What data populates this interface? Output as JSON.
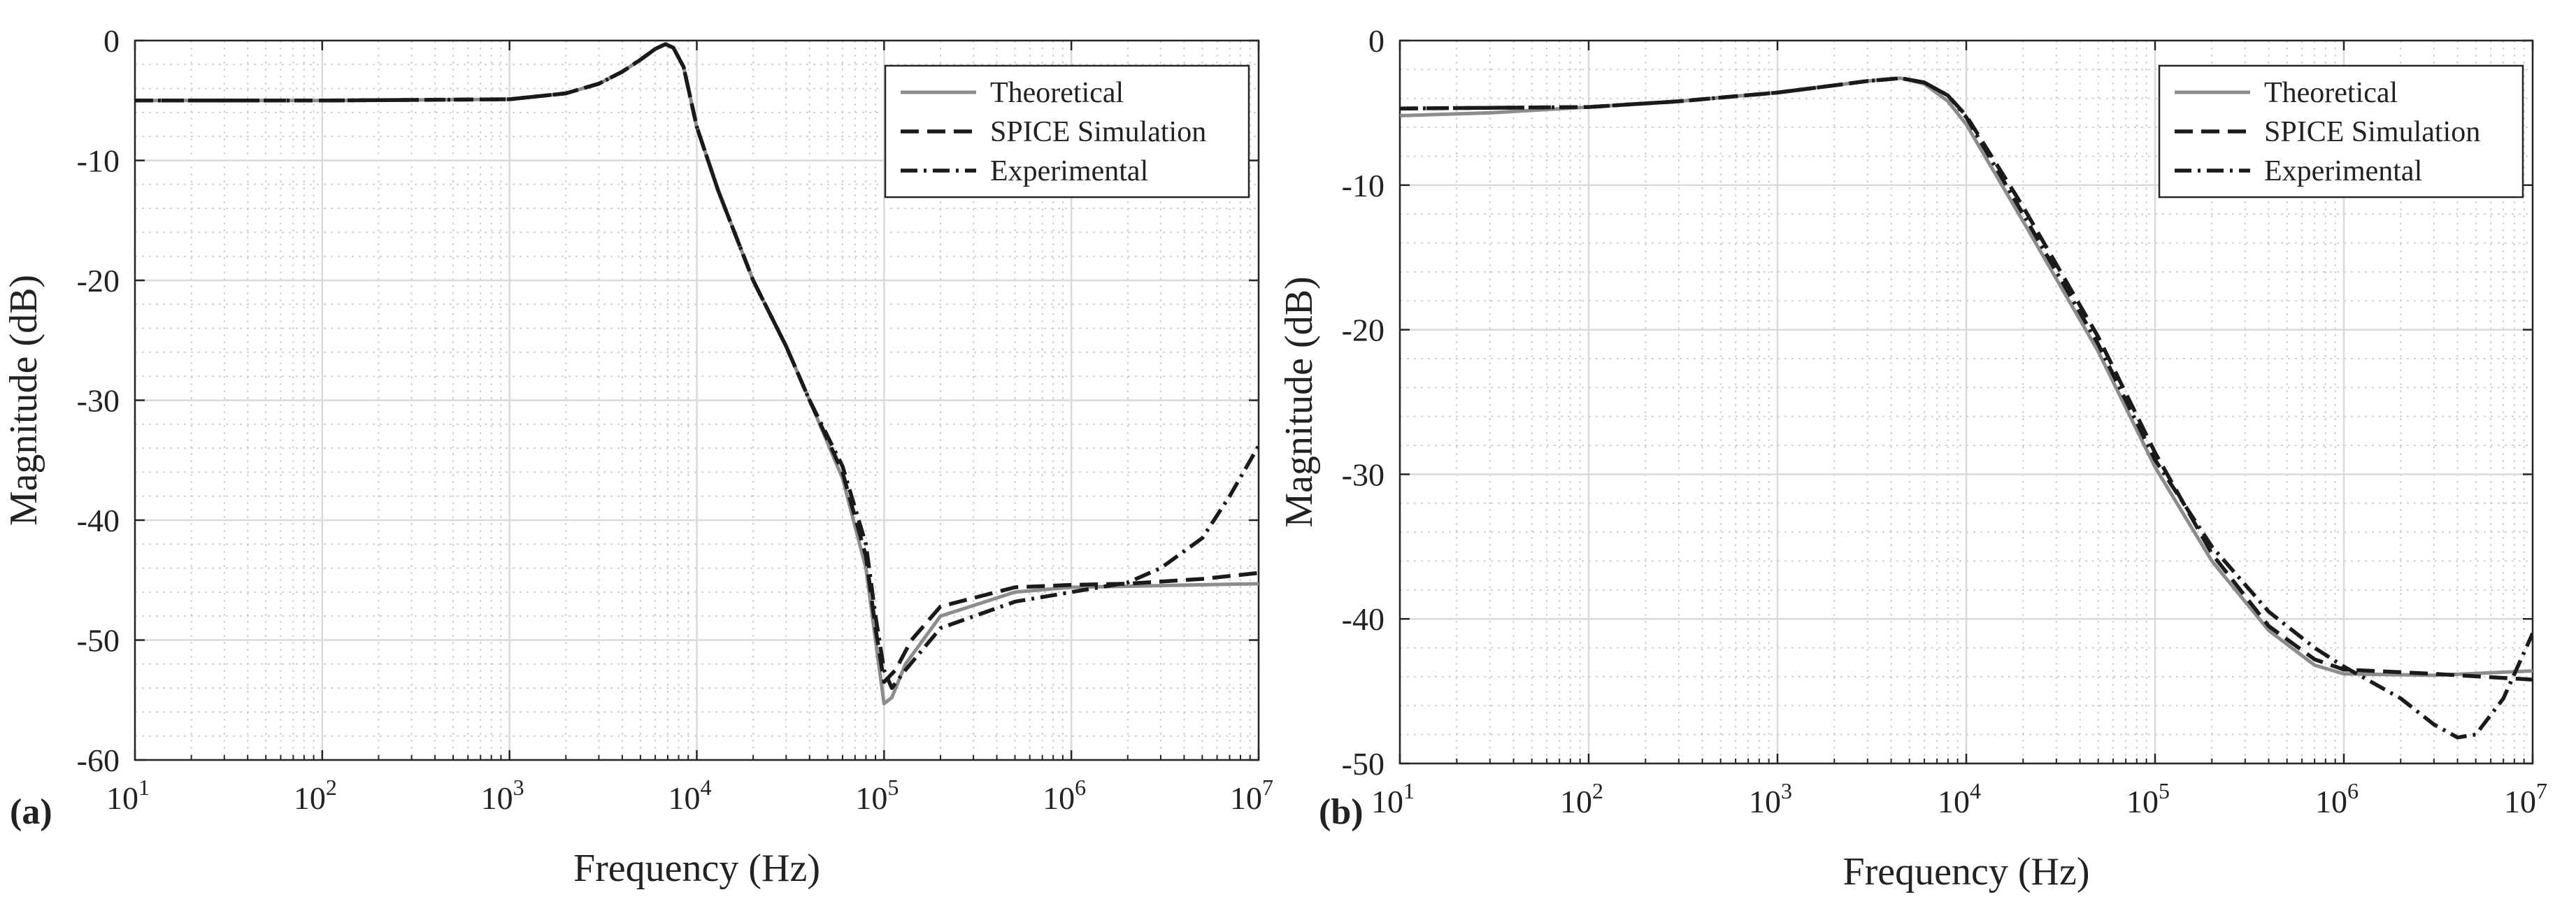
{
  "chart_data": [
    {
      "type": "line",
      "panel_label": "(a)",
      "xscale": "log",
      "xlim": [
        10,
        10000000
      ],
      "ylim": [
        -60,
        0
      ],
      "xlabel": "Frequency (Hz)",
      "ylabel": "Magnitude (dB)",
      "xticks": [
        10,
        100,
        1000,
        10000,
        100000,
        1000000,
        10000000
      ],
      "xtick_labels": [
        [
          "10",
          "1"
        ],
        [
          "10",
          "2"
        ],
        [
          "10",
          "3"
        ],
        [
          "10",
          "4"
        ],
        [
          "10",
          "5"
        ],
        [
          "10",
          "6"
        ],
        [
          "10",
          "7"
        ]
      ],
      "yticks": [
        0,
        -10,
        -20,
        -30,
        -40,
        -50,
        -60
      ],
      "ytick_labels": [
        "0",
        "-10",
        "-20",
        "-30",
        "-40",
        "-50",
        "-60"
      ],
      "grid": true,
      "legend_position": "top-right",
      "series": [
        {
          "name": "Theoretical",
          "style": "solid",
          "color": "#8c8c8c",
          "points": [
            [
              10,
              -5.0
            ],
            [
              100,
              -5.0
            ],
            [
              1000,
              -4.9
            ],
            [
              2000,
              -4.4
            ],
            [
              3000,
              -3.6
            ],
            [
              4000,
              -2.6
            ],
            [
              5000,
              -1.6
            ],
            [
              6000,
              -0.7
            ],
            [
              6800,
              -0.3
            ],
            [
              7500,
              -0.6
            ],
            [
              8500,
              -2.2
            ],
            [
              10000,
              -7.2
            ],
            [
              13000,
              -12.5
            ],
            [
              20000,
              -20.0
            ],
            [
              30000,
              -25.5
            ],
            [
              40000,
              -30.0
            ],
            [
              60000,
              -36.5
            ],
            [
              80000,
              -44.0
            ],
            [
              90000,
              -50.0
            ],
            [
              100000,
              -55.3
            ],
            [
              110000,
              -54.8
            ],
            [
              130000,
              -52.0
            ],
            [
              200000,
              -48.0
            ],
            [
              500000,
              -46.0
            ],
            [
              1000000,
              -45.6
            ],
            [
              10000000,
              -45.3
            ]
          ]
        },
        {
          "name": "SPICE Simulation",
          "style": "dashed",
          "color": "#1a1a1a",
          "points": [
            [
              10,
              -5.0
            ],
            [
              100,
              -5.0
            ],
            [
              1000,
              -4.9
            ],
            [
              2000,
              -4.4
            ],
            [
              3000,
              -3.6
            ],
            [
              4000,
              -2.6
            ],
            [
              5000,
              -1.6
            ],
            [
              6000,
              -0.7
            ],
            [
              6800,
              -0.3
            ],
            [
              7500,
              -0.6
            ],
            [
              8500,
              -2.2
            ],
            [
              10000,
              -7.2
            ],
            [
              13000,
              -12.5
            ],
            [
              20000,
              -20.0
            ],
            [
              30000,
              -25.5
            ],
            [
              40000,
              -30.0
            ],
            [
              60000,
              -36.0
            ],
            [
              80000,
              -43.0
            ],
            [
              90000,
              -49.0
            ],
            [
              100000,
              -53.5
            ],
            [
              115000,
              -52.5
            ],
            [
              140000,
              -50.0
            ],
            [
              200000,
              -47.2
            ],
            [
              500000,
              -45.6
            ],
            [
              1000000,
              -45.4
            ],
            [
              2000000,
              -45.3
            ],
            [
              5000000,
              -44.9
            ],
            [
              10000000,
              -44.4
            ]
          ]
        },
        {
          "name": "Experimental",
          "style": "dashdot",
          "color": "#1a1a1a",
          "points": [
            [
              10,
              -5.0
            ],
            [
              100,
              -5.0
            ],
            [
              1000,
              -4.9
            ],
            [
              2000,
              -4.4
            ],
            [
              3000,
              -3.6
            ],
            [
              4000,
              -2.6
            ],
            [
              5000,
              -1.6
            ],
            [
              6000,
              -0.7
            ],
            [
              6800,
              -0.3
            ],
            [
              7500,
              -0.6
            ],
            [
              8500,
              -2.2
            ],
            [
              10000,
              -7.2
            ],
            [
              13000,
              -12.5
            ],
            [
              20000,
              -20.0
            ],
            [
              30000,
              -25.5
            ],
            [
              40000,
              -30.0
            ],
            [
              60000,
              -35.5
            ],
            [
              80000,
              -42.0
            ],
            [
              90000,
              -48.0
            ],
            [
              100000,
              -52.5
            ],
            [
              110000,
              -54.0
            ],
            [
              130000,
              -52.5
            ],
            [
              200000,
              -49.0
            ],
            [
              500000,
              -46.8
            ],
            [
              1000000,
              -46.0
            ],
            [
              2000000,
              -45.2
            ],
            [
              3000000,
              -44.0
            ],
            [
              5000000,
              -41.5
            ],
            [
              7000000,
              -38.0
            ],
            [
              10000000,
              -33.8
            ]
          ]
        }
      ]
    },
    {
      "type": "line",
      "panel_label": "(b)",
      "xscale": "log",
      "xlim": [
        10,
        10000000
      ],
      "ylim": [
        -50,
        0
      ],
      "xlabel": "Frequency (Hz)",
      "ylabel": "Magnitude (dB)",
      "xticks": [
        10,
        100,
        1000,
        10000,
        100000,
        1000000,
        10000000
      ],
      "xtick_labels": [
        [
          "10",
          "1"
        ],
        [
          "10",
          "2"
        ],
        [
          "10",
          "3"
        ],
        [
          "10",
          "4"
        ],
        [
          "10",
          "5"
        ],
        [
          "10",
          "6"
        ],
        [
          "10",
          "7"
        ]
      ],
      "yticks": [
        0,
        -10,
        -20,
        -30,
        -40,
        -50
      ],
      "ytick_labels": [
        "0",
        "-10",
        "-20",
        "-30",
        "-40",
        "-50"
      ],
      "grid": true,
      "legend_position": "top-right",
      "series": [
        {
          "name": "Theoretical",
          "style": "solid",
          "color": "#8c8c8c",
          "points": [
            [
              10,
              -5.2
            ],
            [
              30,
              -5.0
            ],
            [
              100,
              -4.6
            ],
            [
              300,
              -4.2
            ],
            [
              1000,
              -3.6
            ],
            [
              2000,
              -3.1
            ],
            [
              3000,
              -2.8
            ],
            [
              4500,
              -2.6
            ],
            [
              6000,
              -3.0
            ],
            [
              8000,
              -4.2
            ],
            [
              10000,
              -5.8
            ],
            [
              20000,
              -12.5
            ],
            [
              50000,
              -21.5
            ],
            [
              100000,
              -29.5
            ],
            [
              200000,
              -36.0
            ],
            [
              400000,
              -40.8
            ],
            [
              700000,
              -43.2
            ],
            [
              1000000,
              -43.8
            ],
            [
              3000000,
              -43.9
            ],
            [
              10000000,
              -43.6
            ]
          ]
        },
        {
          "name": "SPICE Simulation",
          "style": "dashed",
          "color": "#1a1a1a",
          "points": [
            [
              10,
              -4.7
            ],
            [
              100,
              -4.6
            ],
            [
              300,
              -4.2
            ],
            [
              1000,
              -3.6
            ],
            [
              2000,
              -3.1
            ],
            [
              3000,
              -2.8
            ],
            [
              4500,
              -2.6
            ],
            [
              6000,
              -2.9
            ],
            [
              8000,
              -3.8
            ],
            [
              10000,
              -5.2
            ],
            [
              20000,
              -11.5
            ],
            [
              50000,
              -20.5
            ],
            [
              100000,
              -28.5
            ],
            [
              200000,
              -35.5
            ],
            [
              400000,
              -40.5
            ],
            [
              700000,
              -42.8
            ],
            [
              1000000,
              -43.5
            ],
            [
              3000000,
              -43.8
            ],
            [
              10000000,
              -44.2
            ]
          ]
        },
        {
          "name": "Experimental",
          "style": "dashdot",
          "color": "#1a1a1a",
          "points": [
            [
              10,
              -4.7
            ],
            [
              100,
              -4.6
            ],
            [
              300,
              -4.2
            ],
            [
              1000,
              -3.6
            ],
            [
              2000,
              -3.1
            ],
            [
              3000,
              -2.8
            ],
            [
              4500,
              -2.6
            ],
            [
              6000,
              -2.9
            ],
            [
              8000,
              -3.8
            ],
            [
              10000,
              -5.3
            ],
            [
              20000,
              -12.0
            ],
            [
              50000,
              -21.0
            ],
            [
              100000,
              -29.0
            ],
            [
              200000,
              -35.0
            ],
            [
              400000,
              -39.5
            ],
            [
              700000,
              -42.0
            ],
            [
              1000000,
              -43.3
            ],
            [
              2000000,
              -45.5
            ],
            [
              3000000,
              -47.3
            ],
            [
              4000000,
              -48.2
            ],
            [
              5000000,
              -48.0
            ],
            [
              7000000,
              -45.5
            ],
            [
              10000000,
              -41.0
            ]
          ]
        }
      ]
    }
  ]
}
